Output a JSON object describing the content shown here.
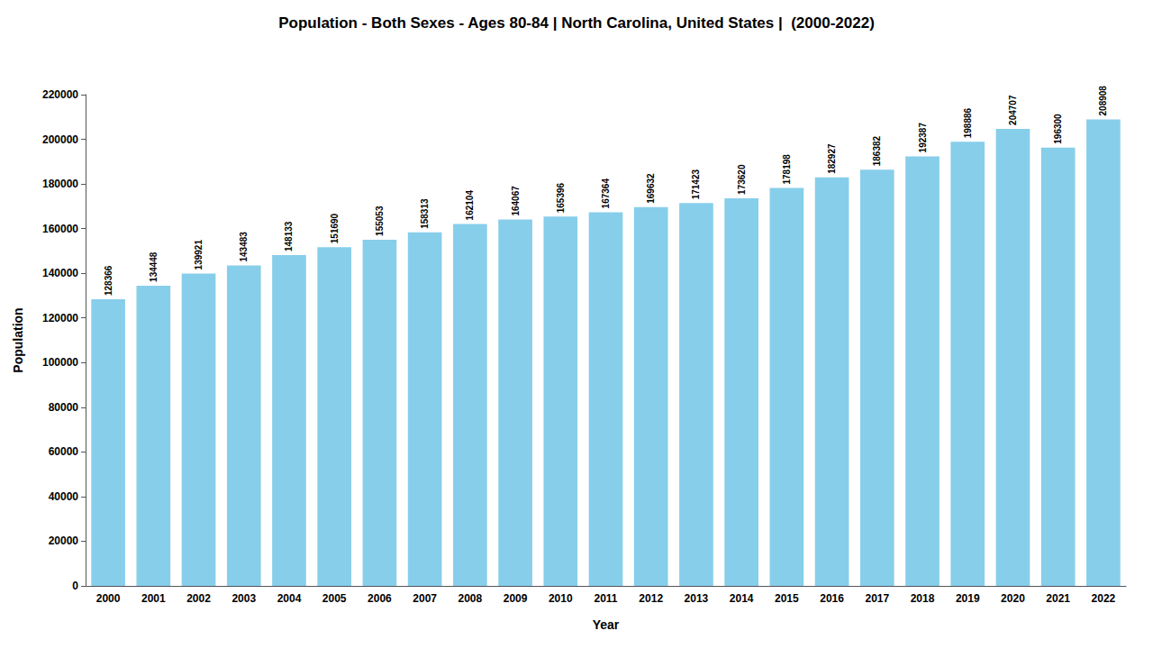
{
  "chart_data": {
    "type": "bar",
    "title": "Population - Both Sexes - Ages 80-84 | North Carolina, United States |  (2000-2022)",
    "xlabel": "Year",
    "ylabel": "Population",
    "categories": [
      "2000",
      "2001",
      "2002",
      "2003",
      "2004",
      "2005",
      "2006",
      "2007",
      "2008",
      "2009",
      "2010",
      "2011",
      "2012",
      "2013",
      "2014",
      "2015",
      "2016",
      "2017",
      "2018",
      "2019",
      "2020",
      "2021",
      "2022"
    ],
    "values": [
      128366,
      134448,
      139921,
      143483,
      148133,
      151690,
      155053,
      158313,
      162104,
      164067,
      165396,
      167364,
      169632,
      171423,
      173620,
      178198,
      182927,
      186382,
      192387,
      198886,
      204707,
      196300,
      208908
    ],
    "color": "#87ceeb",
    "ylim": [
      0,
      220000
    ],
    "yticks": [
      0,
      20000,
      40000,
      60000,
      80000,
      100000,
      120000,
      140000,
      160000,
      180000,
      200000,
      220000
    ],
    "grid": false,
    "data_labels": true
  }
}
